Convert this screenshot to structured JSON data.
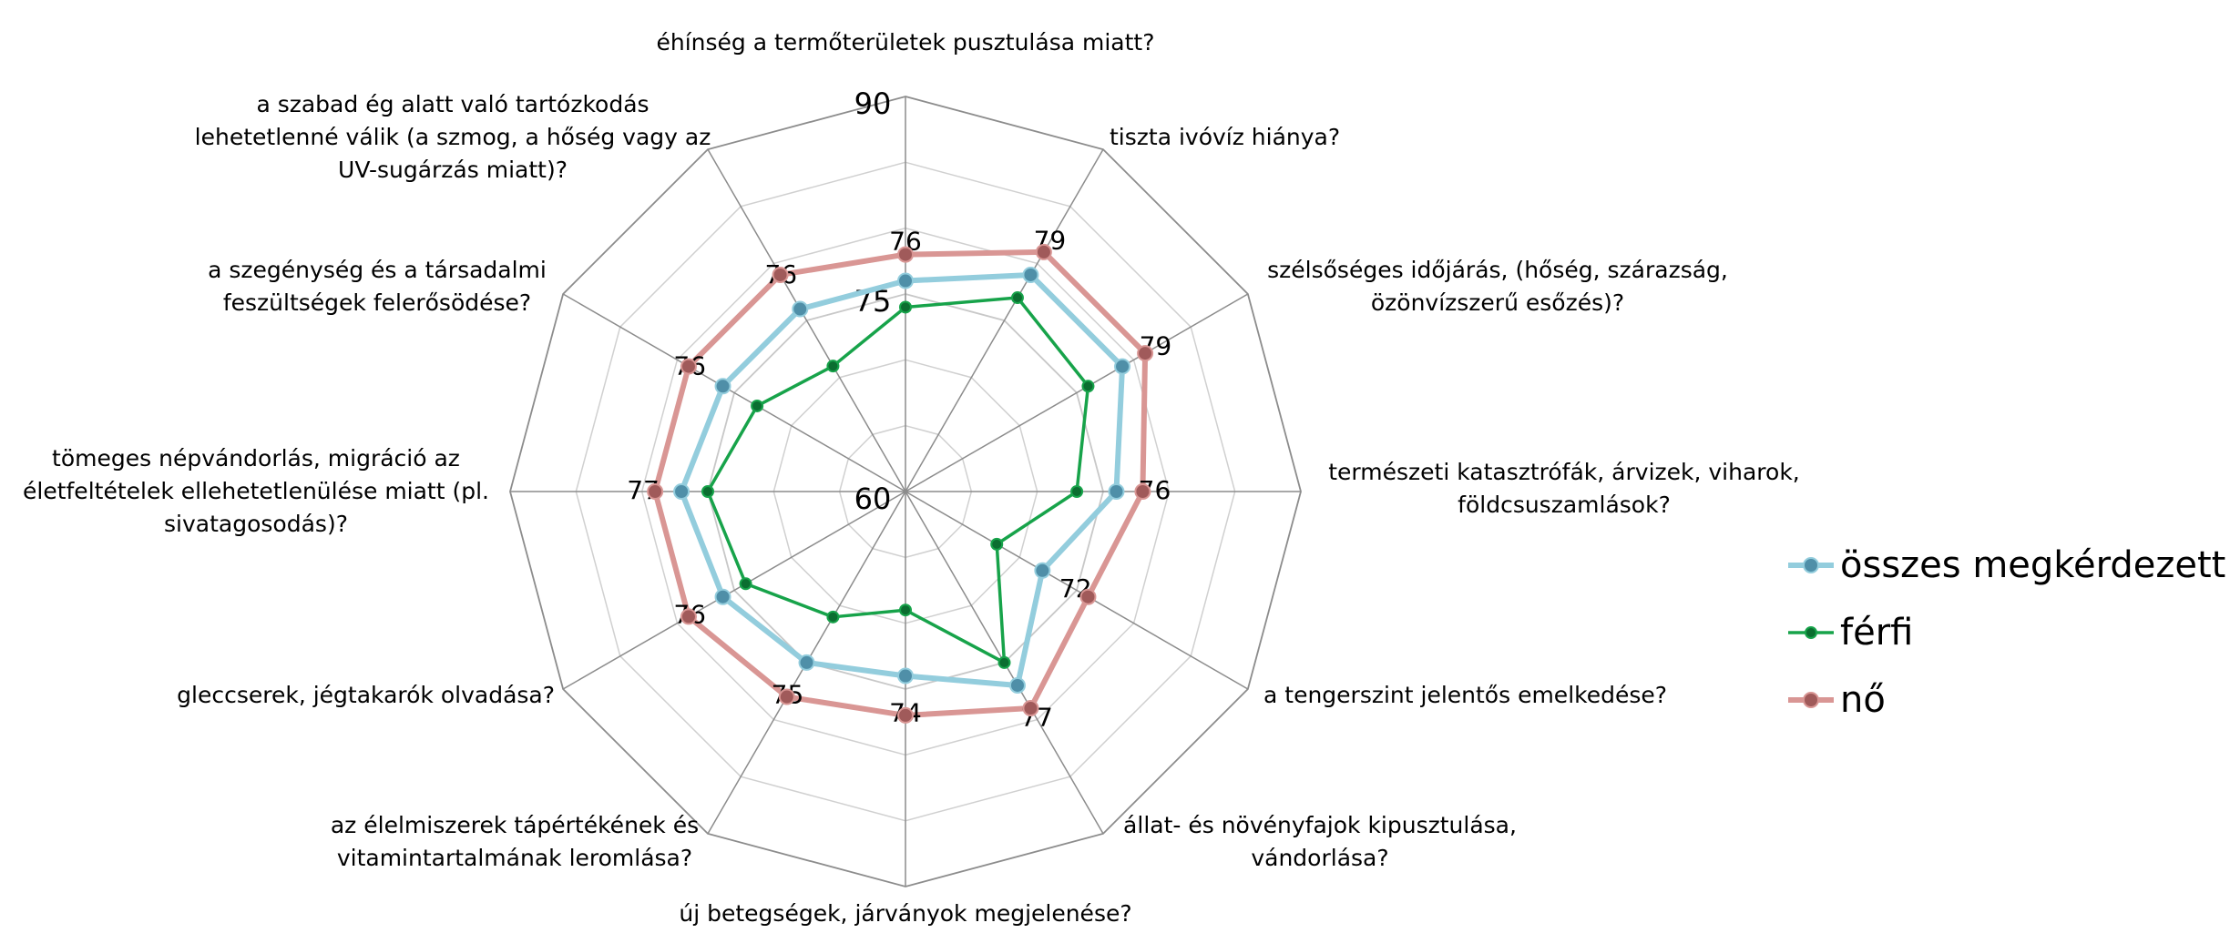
{
  "chart_data": {
    "type": "radar",
    "categories": [
      "éhínség a termőterületek pusztulása miatt?",
      "tiszta ivóvíz hiánya?",
      "szélsőséges időjárás, (hőség, szárazság, özönvízszerű esőzés)?",
      "természeti katasztrófák, árvizek, viharok, földcsuszamlások?",
      "a tengerszint jelentős emelkedése?",
      "állat- és növényfajok kipusztulása, vándorlása?",
      "új betegségek, járványok megjelenése?",
      "az élelmiszerek tápértékének és vitamintartalmának leromlása?",
      "gleccserek, jégtakarók olvadása?",
      "tömeges népvándorlás, migráció az életfeltételek ellehetetlenülése miatt (pl. sivatagosodás)?",
      "a szegénység és a társadalmi feszültségek felerősödése?",
      "a szabad ég alatt való tartózkodás lehetetlenné válik (a szmog, a hőség vagy az UV-sugárzás miatt)?"
    ],
    "series": [
      {
        "name": "összes megkérdezett",
        "color": "#93cddd",
        "marker_color": "#4f8fa8",
        "show_labels": true,
        "values": [
          76,
          79,
          79,
          76,
          72,
          77,
          74,
          75,
          76,
          77,
          76,
          76
        ]
      },
      {
        "name": "férfi",
        "color": "#17a34a",
        "marker_color": "#0b6e30",
        "show_labels": false,
        "values": [
          74,
          77,
          76,
          73,
          68,
          75,
          69,
          71,
          74,
          75,
          73,
          71
        ]
      },
      {
        "name": "nő",
        "color": "#d99694",
        "marker_color": "#a05a5a",
        "show_labels": false,
        "values": [
          78,
          81,
          81,
          78,
          76,
          79,
          77,
          78,
          79,
          79,
          79,
          79
        ]
      }
    ],
    "ylim": [
      60,
      90
    ],
    "yticks": [
      60,
      75,
      90
    ],
    "minor_ticks": [
      65,
      70,
      80,
      85
    ],
    "grid": true,
    "legend": "right"
  }
}
